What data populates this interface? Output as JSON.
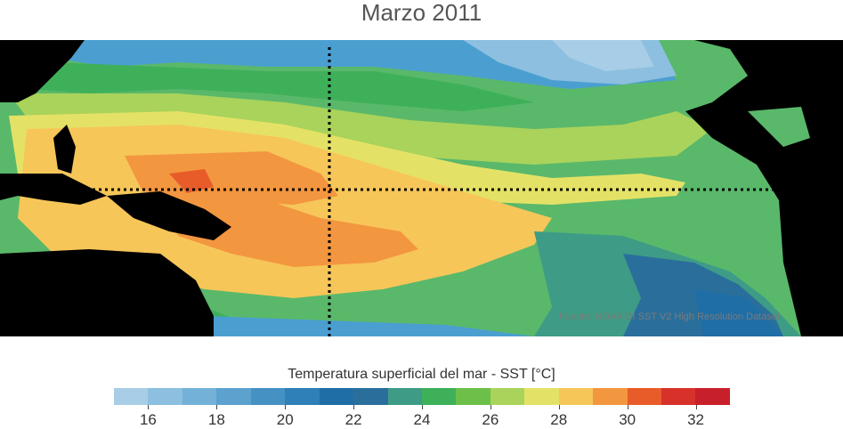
{
  "title": "Marzo 2011",
  "source": "Fuente: NOAA OI SST V2 High Resolution Dataset",
  "legend": {
    "title": "Temperatura superficial del mar - SST  [°C]",
    "min": 15,
    "max": 33,
    "step": 1,
    "colors": [
      "#a8cde6",
      "#8cbfe0",
      "#74b1d8",
      "#5da2ce",
      "#4591c4",
      "#2f7fb8",
      "#1f6ea6",
      "#2a6f9b",
      "#3e9c86",
      "#3fb05a",
      "#6cc04a",
      "#a9d35a",
      "#e4e266",
      "#f6c659",
      "#f39640",
      "#e85c2a",
      "#d8312a",
      "#c8202a"
    ],
    "tick_values": [
      16,
      18,
      20,
      22,
      24,
      26,
      28,
      30,
      32
    ],
    "tick_labels": [
      "16",
      "18",
      "20",
      "22",
      "24",
      "26",
      "28",
      "30",
      "32"
    ]
  }
}
